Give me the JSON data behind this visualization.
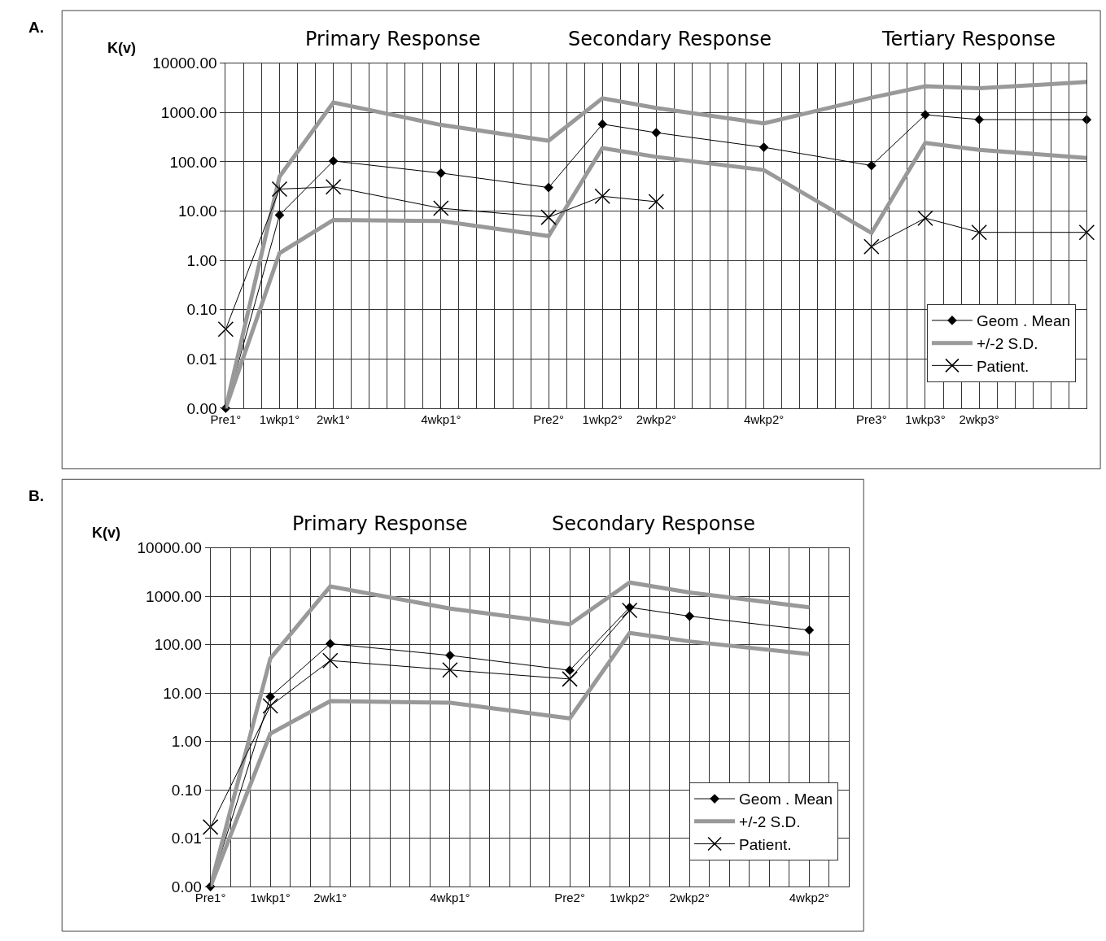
{
  "chart_data": [
    {
      "type": "line",
      "ylabel": "K(v)",
      "log": "y",
      "grid": true,
      "legend": "bottom right",
      "annotations": [
        "A.",
        "Primary Response",
        "Secondary Response",
        "Tertiary Response"
      ],
      "categories": [
        "Pre1°",
        "1wkp1°",
        "2wk1°",
        null,
        "4wkp1°",
        null,
        "Pre2°",
        "1wkp2°",
        "2wkp2°",
        null,
        "4wkp2°",
        null,
        "Pre3°",
        "1wkp3°",
        "2wkp3°",
        null,
        null
      ],
      "ylim": [
        0.001,
        10000
      ],
      "yticks": [
        {
          "value": 0.001,
          "label": "0.00"
        },
        {
          "value": 0.01,
          "label": "0.01"
        },
        {
          "value": 0.1,
          "label": "0.10"
        },
        {
          "value": 1,
          "label": "1.00"
        },
        {
          "value": 10,
          "label": "10.00"
        },
        {
          "value": 100,
          "label": "100.00"
        },
        {
          "value": 1000,
          "label": "1000.00"
        },
        {
          "value": 10000,
          "label": "10000.00"
        }
      ],
      "series": [
        {
          "name": "Geom . Mean",
          "color": "#000000",
          "marker": "diamond",
          "values": [
            0.001,
            8.3,
            104,
            null,
            59,
            null,
            30,
            580,
            390,
            null,
            197,
            null,
            84,
            900,
            720,
            null,
            715
          ]
        },
        {
          "name": "+/-2 S.D.",
          "color": "#999999",
          "marker": "none",
          "values": [
            0.001,
            50,
            1590,
            null,
            560,
            null,
            268,
            1940,
            1240,
            null,
            600,
            null,
            2000,
            3410,
            3100,
            null,
            4160
          ]
        },
        {
          "color": "#999999",
          "marker": "none",
          "values": [
            0.001,
            1.4,
            6.6,
            null,
            6.3,
            null,
            3.1,
            190,
            126,
            null,
            68,
            null,
            3.6,
            242,
            175,
            null,
            120
          ]
        },
        {
          "name": "Patient.",
          "color": "#000000",
          "marker": "cross",
          "values": [
            0.04,
            28,
            31,
            null,
            11.4,
            null,
            7.5,
            20,
            15.5,
            null,
            null,
            null,
            null,
            null,
            null,
            null,
            null
          ]
        },
        {
          "color": "#000000",
          "marker": "cross",
          "values": [
            null,
            null,
            null,
            null,
            null,
            null,
            null,
            null,
            null,
            null,
            null,
            null,
            1.9,
            7.2,
            3.7,
            null,
            3.7
          ]
        }
      ]
    },
    {
      "type": "line",
      "ylabel": "K(v)",
      "log": "y",
      "grid": true,
      "legend": "bottom right",
      "annotations": [
        "B.",
        "Primary Response",
        "Secondary Response"
      ],
      "categories": [
        "Pre1°",
        "1wkp1°",
        "2wk1°",
        null,
        "4wkp1°",
        null,
        "Pre2°",
        "1wkp2°",
        "2wkp2°",
        null,
        "4wkp2°"
      ],
      "ylim": [
        0.001,
        10000
      ],
      "yticks": [
        {
          "value": 0.001,
          "label": "0.00"
        },
        {
          "value": 0.01,
          "label": "0.01"
        },
        {
          "value": 0.1,
          "label": "0.10"
        },
        {
          "value": 1,
          "label": "1.00"
        },
        {
          "value": 10,
          "label": "10.00"
        },
        {
          "value": 100,
          "label": "100.00"
        },
        {
          "value": 1000,
          "label": "1000.00"
        },
        {
          "value": 10000,
          "label": "10000.00"
        }
      ],
      "series": [
        {
          "name": "Geom . Mean",
          "color": "#000000",
          "marker": "diamond",
          "values": [
            0.001,
            8.4,
            105,
            null,
            60,
            null,
            29.5,
            590,
            389,
            null,
            200
          ]
        },
        {
          "name": "+/-2 S.D.",
          "color": "#999999",
          "marker": "none",
          "values": [
            0.001,
            52,
            1600,
            null,
            560,
            null,
            263,
            1930,
            1200,
            null,
            590
          ]
        },
        {
          "color": "#999999",
          "marker": "none",
          "values": [
            0.001,
            1.45,
            6.8,
            null,
            6.3,
            null,
            3.0,
            175,
            117,
            null,
            64
          ]
        },
        {
          "name": "Patient.",
          "color": "#000000",
          "marker": "cross",
          "values": [
            0.017,
            5.4,
            47,
            null,
            30,
            null,
            19.5,
            510,
            null,
            null,
            null
          ]
        }
      ]
    }
  ]
}
